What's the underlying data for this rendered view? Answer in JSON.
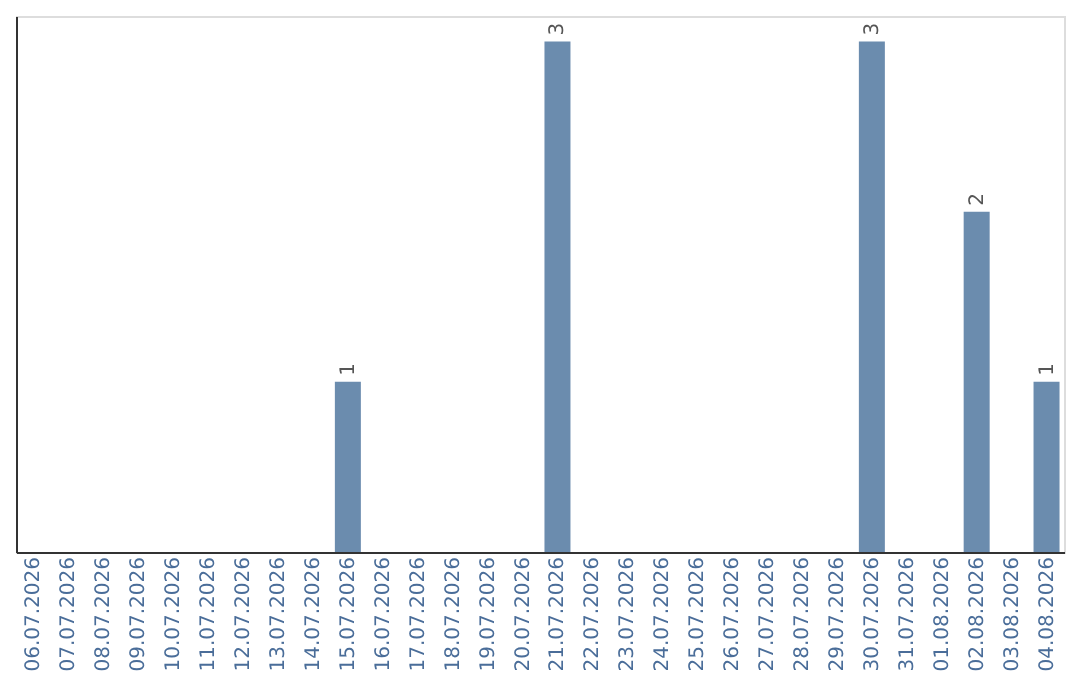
{
  "chart_data": {
    "type": "bar",
    "categories": [
      "06.07.2026",
      "07.07.2026",
      "08.07.2026",
      "09.07.2026",
      "10.07.2026",
      "11.07.2026",
      "12.07.2026",
      "13.07.2026",
      "14.07.2026",
      "15.07.2026",
      "16.07.2026",
      "17.07.2026",
      "18.07.2026",
      "19.07.2026",
      "20.07.2026",
      "21.07.2026",
      "22.07.2026",
      "23.07.2026",
      "24.07.2026",
      "25.07.2026",
      "26.07.2026",
      "27.07.2026",
      "28.07.2026",
      "29.07.2026",
      "30.07.2026",
      "31.07.2026",
      "01.08.2026",
      "02.08.2026",
      "03.08.2026",
      "04.08.2026"
    ],
    "values": [
      0,
      0,
      0,
      0,
      0,
      0,
      0,
      0,
      0,
      1,
      0,
      0,
      0,
      0,
      0,
      3,
      0,
      0,
      0,
      0,
      0,
      0,
      0,
      0,
      3,
      0,
      0,
      2,
      0,
      1
    ],
    "value_labels": [
      null,
      null,
      null,
      null,
      null,
      null,
      null,
      null,
      null,
      "1",
      null,
      null,
      null,
      null,
      null,
      "3",
      null,
      null,
      null,
      null,
      null,
      null,
      null,
      null,
      "3",
      null,
      null,
      "2",
      null,
      "1"
    ],
    "color": "#6b8cae",
    "tick_labels": "x",
    "grid": false
  }
}
